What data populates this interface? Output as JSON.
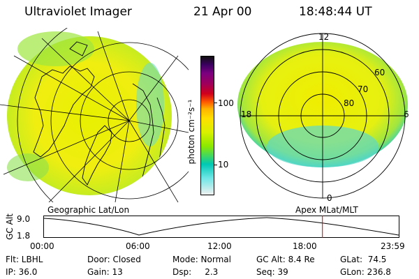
{
  "header": {
    "title": "Ultraviolet Imager",
    "date": "21 Apr 00",
    "time": "18:48:44 UT"
  },
  "colorbar": {
    "unit_label": "photon cm⁻²s⁻¹",
    "ticks": [
      "100",
      "10"
    ],
    "colors": [
      "#101010",
      "#3b0060",
      "#7a0080",
      "#a0005a",
      "#d0001a",
      "#ff5a00",
      "#ffb400",
      "#ffe000",
      "#d8f000",
      "#8ce800",
      "#00c8b4",
      "#6ee6e6",
      "#f0f0f0"
    ]
  },
  "left_panel": {
    "label": "Geographic Lat/Lon"
  },
  "right_panel": {
    "label": "Apex MLat/MLT",
    "mlt_labels": {
      "top": "12",
      "left": "18",
      "right": "6",
      "bottom": "0"
    },
    "lat_labels": [
      "60",
      "70",
      "80"
    ]
  },
  "altitude_plot": {
    "ylabel": "GC Alt",
    "yticks": [
      "9.0",
      "1.8"
    ],
    "xticks": [
      "00:00",
      "06:00",
      "12:00",
      "18:00",
      "23:59"
    ],
    "current_time_marker_hours": 18.81,
    "marker_color": "#cc0000"
  },
  "status": {
    "row1": {
      "flt": "Flt: LBHL",
      "door": "Door: Closed",
      "mode": "Mode: Normal",
      "gcalt": "GC Alt: 8.4 Re",
      "glat": "GLat:  74.5"
    },
    "row2": {
      "ip": "IP: 36.0",
      "gain": "Gain: 13",
      "dsp": "Dsp:     2.3",
      "seq": "Seq: 39",
      "glon": "GLon: 236.8"
    }
  }
}
